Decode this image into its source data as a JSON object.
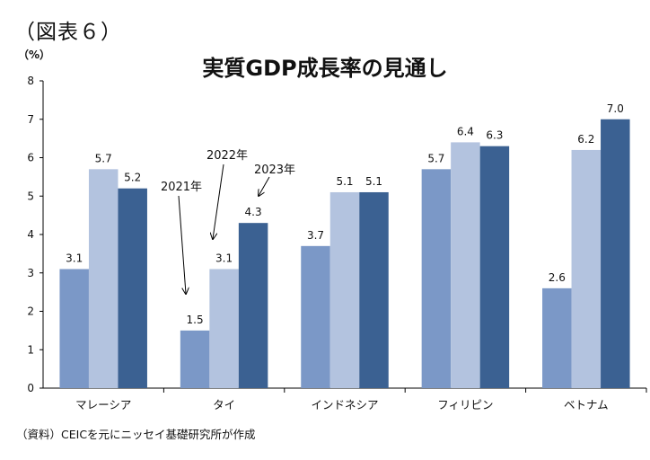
{
  "figure_label": "（図表６）",
  "source_note": "（資料）CEICを元にニッセイ基礎研究所が作成",
  "chart_data": {
    "type": "bar",
    "title": "実質GDP成長率の見通し",
    "unit": "（%）",
    "xlabel": "",
    "ylabel": "",
    "ylim": [
      0,
      8
    ],
    "yticks": [
      0,
      1,
      2,
      3,
      4,
      5,
      6,
      7,
      8
    ],
    "grid": false,
    "categories": [
      "マレーシア",
      "タイ",
      "インドネシア",
      "フィリピン",
      "ベトナム"
    ],
    "series": [
      {
        "name": "2021年",
        "color": "#7b98c7",
        "values": [
          3.1,
          1.5,
          3.7,
          5.7,
          2.6
        ]
      },
      {
        "name": "2022年",
        "color": "#b3c3df",
        "values": [
          5.7,
          3.1,
          5.1,
          6.4,
          6.2
        ]
      },
      {
        "name": "2023年",
        "color": "#3b6192",
        "values": [
          5.2,
          4.3,
          5.1,
          6.3,
          7.0
        ]
      }
    ],
    "annotations": {
      "category": "タイ",
      "labels": [
        "2021年",
        "2022年",
        "2023年"
      ]
    }
  }
}
